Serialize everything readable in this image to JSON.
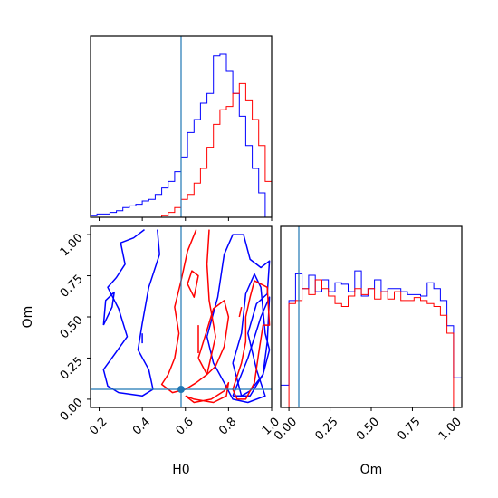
{
  "chart_data": {
    "type": "corner",
    "params": [
      "H0",
      "Om"
    ],
    "axis_labels": {
      "x_left": "H0",
      "x_right": "Om",
      "y_lower": "Om"
    },
    "truth": {
      "H0": 0.58,
      "Om": 0.06
    },
    "ranges": {
      "H0": [
        0.16,
        1.0
      ],
      "Om": [
        -0.05,
        1.05
      ]
    },
    "ticks": {
      "H0": [
        "0.2",
        "0.4",
        "0.6",
        "0.8",
        "1.0"
      ],
      "Om": [
        "0.00",
        "0.25",
        "0.50",
        "0.75",
        "1.00"
      ]
    },
    "colors": {
      "series_blue": "#0000ff",
      "series_red": "#ff0000",
      "truth_line": "#1f77b4"
    },
    "series": [
      {
        "color": "blue",
        "h0_hist_bins": [
          [
            0.16,
            0.19,
            0.01
          ],
          [
            0.19,
            0.22,
            0.02
          ],
          [
            0.22,
            0.25,
            0.02
          ],
          [
            0.25,
            0.28,
            0.03
          ],
          [
            0.28,
            0.31,
            0.04
          ],
          [
            0.31,
            0.34,
            0.06
          ],
          [
            0.34,
            0.37,
            0.07
          ],
          [
            0.37,
            0.4,
            0.08
          ],
          [
            0.4,
            0.43,
            0.1
          ],
          [
            0.43,
            0.46,
            0.11
          ],
          [
            0.46,
            0.49,
            0.14
          ],
          [
            0.49,
            0.52,
            0.18
          ],
          [
            0.52,
            0.55,
            0.22
          ],
          [
            0.55,
            0.58,
            0.28
          ],
          [
            0.58,
            0.61,
            0.37
          ],
          [
            0.61,
            0.64,
            0.52
          ],
          [
            0.64,
            0.67,
            0.6
          ],
          [
            0.67,
            0.7,
            0.7
          ],
          [
            0.7,
            0.73,
            0.76
          ],
          [
            0.73,
            0.76,
            0.99
          ],
          [
            0.76,
            0.79,
            1.0
          ],
          [
            0.79,
            0.82,
            0.9
          ],
          [
            0.82,
            0.85,
            0.76
          ],
          [
            0.85,
            0.88,
            0.62
          ],
          [
            0.88,
            0.91,
            0.44
          ],
          [
            0.91,
            0.94,
            0.3
          ],
          [
            0.94,
            0.97,
            0.15
          ],
          [
            0.97,
            1.0,
            0.0
          ]
        ],
        "om_hist_bins": [
          [
            -0.05,
            0.0,
            0.15
          ],
          [
            0.0,
            0.04,
            0.72
          ],
          [
            0.04,
            0.08,
            0.9
          ],
          [
            0.08,
            0.12,
            0.8
          ],
          [
            0.12,
            0.16,
            0.89
          ],
          [
            0.16,
            0.2,
            0.78
          ],
          [
            0.2,
            0.24,
            0.86
          ],
          [
            0.24,
            0.28,
            0.78
          ],
          [
            0.28,
            0.32,
            0.84
          ],
          [
            0.32,
            0.36,
            0.83
          ],
          [
            0.36,
            0.4,
            0.78
          ],
          [
            0.4,
            0.44,
            0.92
          ],
          [
            0.44,
            0.48,
            0.75
          ],
          [
            0.48,
            0.52,
            0.8
          ],
          [
            0.52,
            0.56,
            0.86
          ],
          [
            0.56,
            0.6,
            0.78
          ],
          [
            0.6,
            0.64,
            0.8
          ],
          [
            0.64,
            0.68,
            0.8
          ],
          [
            0.68,
            0.72,
            0.78
          ],
          [
            0.72,
            0.76,
            0.76
          ],
          [
            0.76,
            0.8,
            0.76
          ],
          [
            0.8,
            0.84,
            0.75
          ],
          [
            0.84,
            0.88,
            0.84
          ],
          [
            0.88,
            0.92,
            0.8
          ],
          [
            0.92,
            0.96,
            0.72
          ],
          [
            0.96,
            1.0,
            0.55
          ],
          [
            1.0,
            1.05,
            0.2
          ]
        ],
        "contours": [
          [
            [
              0.41,
              1.03
            ],
            [
              0.36,
              0.98
            ],
            [
              0.3,
              0.95
            ],
            [
              0.32,
              0.82
            ],
            [
              0.28,
              0.74
            ],
            [
              0.24,
              0.68
            ],
            [
              0.29,
              0.55
            ],
            [
              0.33,
              0.38
            ],
            [
              0.27,
              0.27
            ],
            [
              0.22,
              0.18
            ],
            [
              0.24,
              0.08
            ],
            [
              0.29,
              0.04
            ],
            [
              0.4,
              0.02
            ],
            [
              0.45,
              0.06
            ],
            [
              0.43,
              0.18
            ],
            [
              0.38,
              0.3
            ],
            [
              0.4,
              0.46
            ],
            [
              0.43,
              0.68
            ],
            [
              0.48,
              0.88
            ],
            [
              0.47,
              1.03
            ]
          ],
          [
            [
              0.22,
              0.45
            ],
            [
              0.23,
              0.6
            ],
            [
              0.27,
              0.65
            ],
            [
              0.26,
              0.56
            ],
            [
              0.22,
              0.45
            ]
          ],
          [
            [
              0.4,
              0.4
            ],
            [
              0.4,
              0.34
            ]
          ],
          [
            [
              0.7,
              0.38
            ],
            [
              0.75,
              0.62
            ],
            [
              0.78,
              0.88
            ],
            [
              0.82,
              1.0
            ],
            [
              0.87,
              1.0
            ],
            [
              0.9,
              0.85
            ],
            [
              0.95,
              0.8
            ],
            [
              0.99,
              0.84
            ],
            [
              0.98,
              0.64
            ],
            [
              0.93,
              0.58
            ],
            [
              0.89,
              0.4
            ],
            [
              0.93,
              0.18
            ],
            [
              0.97,
              0.02
            ],
            [
              0.89,
              -0.02
            ],
            [
              0.82,
              0.0
            ],
            [
              0.78,
              0.1
            ],
            [
              0.73,
              0.22
            ],
            [
              0.7,
              0.38
            ]
          ],
          [
            [
              0.82,
              0.22
            ],
            [
              0.86,
              0.4
            ],
            [
              0.88,
              0.64
            ],
            [
              0.92,
              0.76
            ],
            [
              0.95,
              0.68
            ],
            [
              0.97,
              0.4
            ],
            [
              0.99,
              0.3
            ],
            [
              0.96,
              0.15
            ],
            [
              0.9,
              0.05
            ],
            [
              0.86,
              0.02
            ],
            [
              0.82,
              0.22
            ]
          ],
          [
            [
              0.82,
              0.02
            ],
            [
              0.89,
              0.25
            ],
            [
              0.95,
              0.5
            ],
            [
              0.99,
              0.62
            ],
            [
              0.98,
              0.35
            ],
            [
              0.96,
              0.15
            ],
            [
              0.9,
              0.02
            ],
            [
              0.82,
              0.02
            ]
          ]
        ]
      },
      {
        "color": "red",
        "h0_hist_bins": [
          [
            0.46,
            0.49,
            0.0
          ],
          [
            0.49,
            0.52,
            0.01
          ],
          [
            0.52,
            0.55,
            0.03
          ],
          [
            0.55,
            0.58,
            0.06
          ],
          [
            0.58,
            0.61,
            0.11
          ],
          [
            0.61,
            0.64,
            0.14
          ],
          [
            0.64,
            0.67,
            0.21
          ],
          [
            0.67,
            0.7,
            0.3
          ],
          [
            0.7,
            0.73,
            0.43
          ],
          [
            0.73,
            0.76,
            0.57
          ],
          [
            0.76,
            0.79,
            0.66
          ],
          [
            0.79,
            0.82,
            0.68
          ],
          [
            0.82,
            0.85,
            0.76
          ],
          [
            0.85,
            0.88,
            0.82
          ],
          [
            0.88,
            0.91,
            0.72
          ],
          [
            0.91,
            0.94,
            0.6
          ],
          [
            0.94,
            0.97,
            0.44
          ],
          [
            0.97,
            1.0,
            0.22
          ]
        ],
        "om_hist_bins": [
          [
            0.0,
            0.04,
            0.7
          ],
          [
            0.04,
            0.08,
            0.72
          ],
          [
            0.08,
            0.12,
            0.8
          ],
          [
            0.12,
            0.16,
            0.76
          ],
          [
            0.16,
            0.2,
            0.86
          ],
          [
            0.2,
            0.24,
            0.8
          ],
          [
            0.24,
            0.28,
            0.75
          ],
          [
            0.28,
            0.32,
            0.7
          ],
          [
            0.32,
            0.36,
            0.68
          ],
          [
            0.36,
            0.4,
            0.75
          ],
          [
            0.4,
            0.44,
            0.8
          ],
          [
            0.44,
            0.48,
            0.76
          ],
          [
            0.48,
            0.52,
            0.8
          ],
          [
            0.52,
            0.56,
            0.73
          ],
          [
            0.56,
            0.6,
            0.78
          ],
          [
            0.6,
            0.64,
            0.73
          ],
          [
            0.64,
            0.68,
            0.78
          ],
          [
            0.68,
            0.72,
            0.72
          ],
          [
            0.72,
            0.76,
            0.72
          ],
          [
            0.76,
            0.8,
            0.74
          ],
          [
            0.8,
            0.84,
            0.72
          ],
          [
            0.84,
            0.88,
            0.7
          ],
          [
            0.88,
            0.92,
            0.68
          ],
          [
            0.92,
            0.96,
            0.62
          ],
          [
            0.96,
            1.0,
            0.5
          ]
        ],
        "contours": [
          [
            [
              0.65,
              1.03
            ],
            [
              0.61,
              0.9
            ],
            [
              0.58,
              0.72
            ],
            [
              0.55,
              0.56
            ],
            [
              0.57,
              0.4
            ],
            [
              0.55,
              0.25
            ],
            [
              0.52,
              0.15
            ],
            [
              0.49,
              0.09
            ],
            [
              0.54,
              0.04
            ],
            [
              0.6,
              0.06
            ],
            [
              0.65,
              0.1
            ],
            [
              0.7,
              0.15
            ],
            [
              0.74,
              0.38
            ],
            [
              0.71,
              0.6
            ],
            [
              0.7,
              0.82
            ],
            [
              0.71,
              1.03
            ]
          ],
          [
            [
              0.61,
              0.7
            ],
            [
              0.63,
              0.78
            ],
            [
              0.66,
              0.75
            ],
            [
              0.64,
              0.62
            ],
            [
              0.61,
              0.7
            ]
          ],
          [
            [
              0.66,
              0.45
            ],
            [
              0.66,
              0.28
            ]
          ],
          [
            [
              0.6,
              0.02
            ],
            [
              0.64,
              -0.02
            ],
            [
              0.72,
              0.0
            ],
            [
              0.78,
              0.05
            ],
            [
              0.8,
              0.1
            ],
            [
              0.79,
              0.02
            ],
            [
              0.73,
              -0.02
            ],
            [
              0.64,
              0.0
            ],
            [
              0.6,
              0.02
            ]
          ],
          [
            [
              0.82,
              0.06
            ],
            [
              0.86,
              0.22
            ],
            [
              0.88,
              0.35
            ],
            [
              0.88,
              0.5
            ],
            [
              0.9,
              0.62
            ],
            [
              0.92,
              0.72
            ],
            [
              0.98,
              0.68
            ],
            [
              0.99,
              0.45
            ],
            [
              0.96,
              0.45
            ],
            [
              0.94,
              0.28
            ],
            [
              0.92,
              0.1
            ],
            [
              0.88,
              0.0
            ],
            [
              0.84,
              0.0
            ],
            [
              0.82,
              0.06
            ]
          ],
          [
            [
              0.66,
              0.25
            ],
            [
              0.7,
              0.42
            ],
            [
              0.73,
              0.55
            ],
            [
              0.78,
              0.6
            ],
            [
              0.8,
              0.5
            ],
            [
              0.78,
              0.32
            ],
            [
              0.74,
              0.2
            ],
            [
              0.7,
              0.15
            ],
            [
              0.66,
              0.25
            ]
          ],
          [
            [
              0.85,
              0.5
            ],
            [
              0.86,
              0.56
            ]
          ]
        ]
      }
    ]
  }
}
